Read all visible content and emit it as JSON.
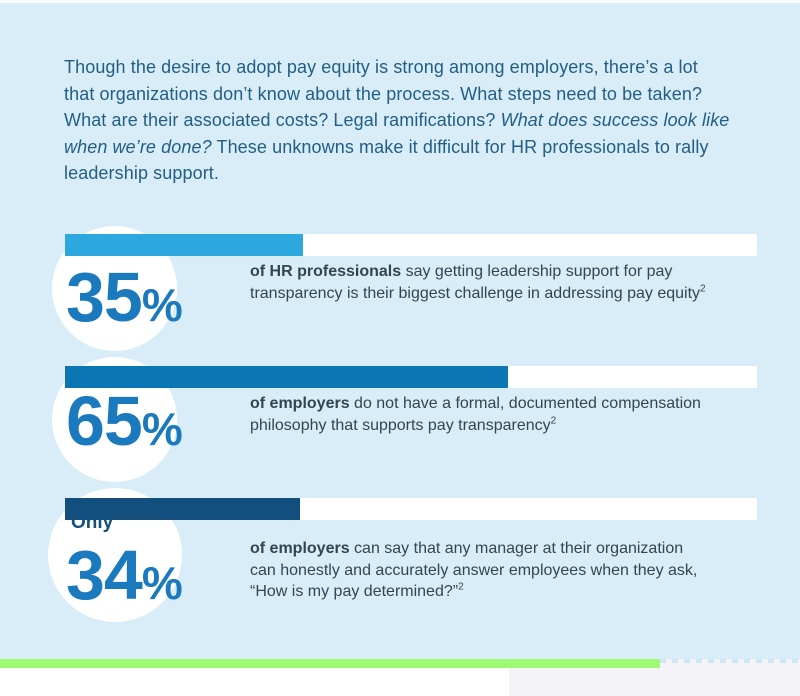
{
  "page": {
    "background_color": "#f4f4f8",
    "top_strip_color": "#ffffff"
  },
  "infographic": {
    "background_color": "#d8edf7",
    "intro": {
      "color": "#235e85",
      "segments": [
        {
          "text": "Though the desire to adopt pay equity is strong among employers, there’s a lot\nthat organizations don’t know about the process. What steps need to be taken?\nWhat are their associated costs? Legal ramifications? "
        },
        {
          "text": "What does success look like\nwhen we’re done?",
          "italic": true
        },
        {
          "text": " These unknowns make it difficult for HR professionals to rally\nleadership support."
        }
      ]
    },
    "accent": {
      "value_color": "#1b79bd",
      "body_text_color": "#314653",
      "track_color": "#ffffff",
      "prefix_color": "#12507e"
    },
    "stats": [
      {
        "value": "35",
        "unit": "%",
        "bar_width_pct": 34.4,
        "fill_color": "#2ca8df",
        "segments": [
          {
            "text": "of HR professionals",
            "bold": true
          },
          {
            "text": " say getting leadership support for pay\ntransparency is their biggest challenge in addressing pay equity"
          },
          {
            "text": "2",
            "sup": true
          }
        ]
      },
      {
        "value": "65",
        "unit": "%",
        "bar_width_pct": 64.0,
        "fill_color": "#0a76b4",
        "segments": [
          {
            "text": "of employers",
            "bold": true
          },
          {
            "text": " do not have a formal, documented compensation\nphilosophy that supports pay transparency"
          },
          {
            "text": "2",
            "sup": true
          }
        ]
      },
      {
        "value": "34",
        "unit": "%",
        "prefix": "Only",
        "bar_width_pct": 34.0,
        "fill_color": "#134f7e",
        "segments": [
          {
            "text": "of employers",
            "bold": true
          },
          {
            "text": " can say that any manager at their organization\ncan honestly and accurately answer employees when they ask,\n“How is my pay determined?”"
          },
          {
            "text": "2",
            "sup": true
          }
        ]
      }
    ],
    "footer_bar": {
      "fill_color": "#9efa73",
      "fill_width_pct": 82.5,
      "dash_color": "#cde9f6"
    }
  },
  "chart_data": {
    "type": "bar",
    "orientation": "horizontal",
    "unit": "percent",
    "values": [
      35,
      65,
      34
    ],
    "value_labels": [
      "35%",
      "65%",
      "Only 34%"
    ],
    "categories": [
      "HR professionals who say getting leadership support for pay transparency is their biggest challenge in addressing pay equity",
      "Employers who do not have a formal, documented compensation philosophy that supports pay transparency",
      "Employers who can say that any manager at their organization can honestly and accurately answer employees when they ask, “How is my pay determined?”"
    ],
    "xlim": [
      0,
      100
    ],
    "bar_colors": [
      "#2ca8df",
      "#0a76b4",
      "#134f7e"
    ],
    "footnote_superscript": "2",
    "grid": false,
    "legend": false
  }
}
